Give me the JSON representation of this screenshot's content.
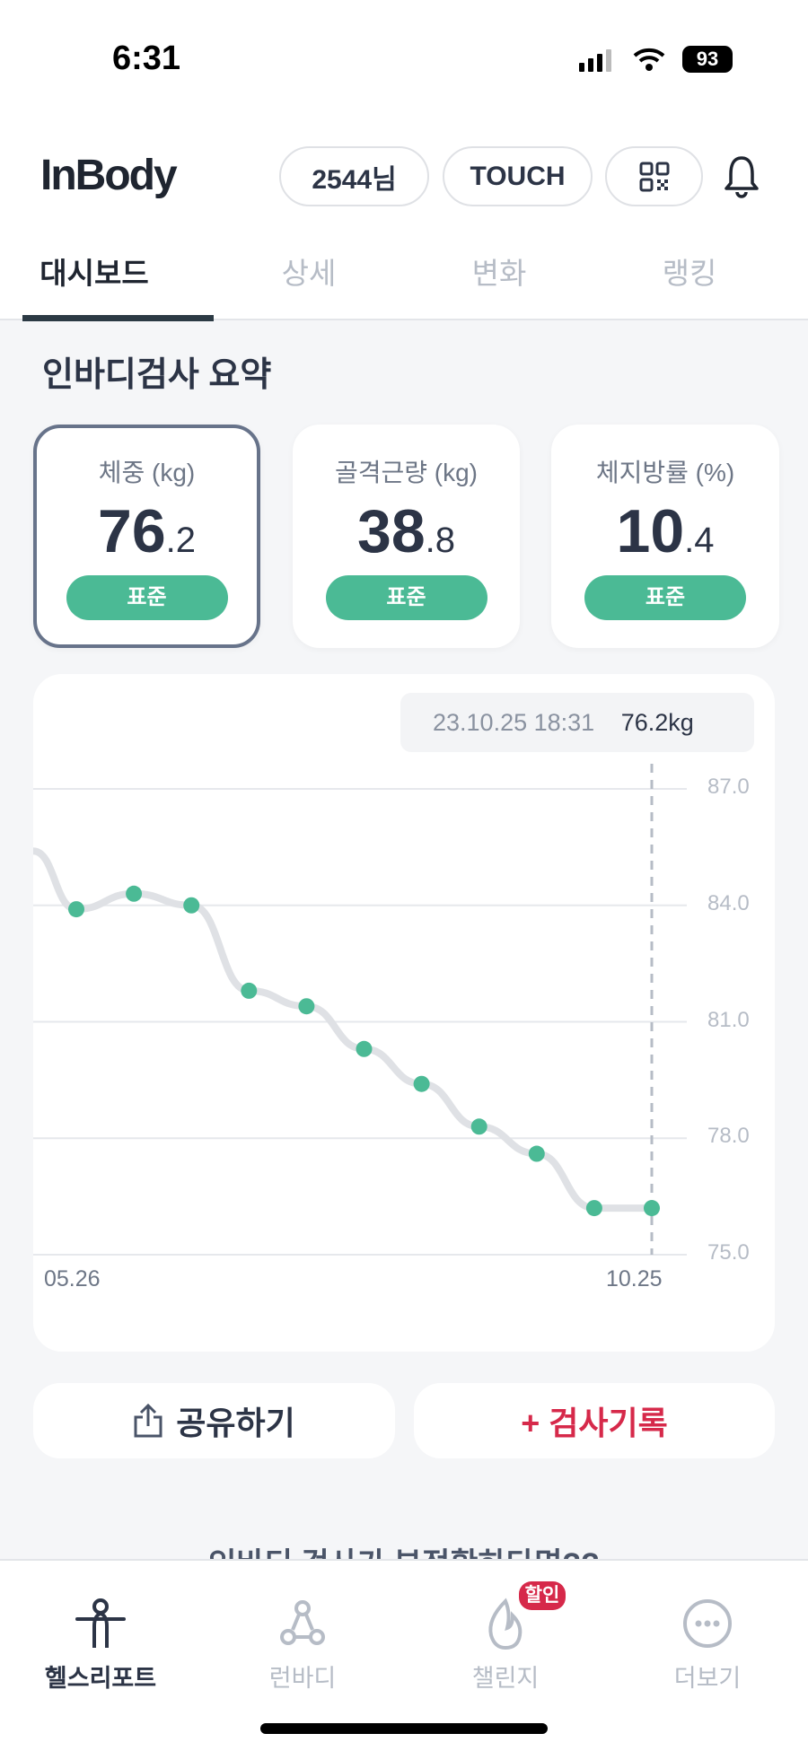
{
  "status": {
    "time": "6:31",
    "battery": "93"
  },
  "header": {
    "logo": "InBody",
    "user_pill": "2544님",
    "touch_pill": "TOUCH",
    "qr_icon": "qr-code-icon",
    "bell_icon": "bell-icon"
  },
  "tabs": [
    {
      "label": "대시보드",
      "active": true
    },
    {
      "label": "상세"
    },
    {
      "label": "변화"
    },
    {
      "label": "랭킹"
    }
  ],
  "section_title": "인바디검사 요약",
  "cards": [
    {
      "label": "체중 (kg)",
      "int": "76",
      "dec": ".2",
      "badge": "표준",
      "selected": true
    },
    {
      "label": "골격근량 (kg)",
      "int": "38",
      "dec": ".8",
      "badge": "표준"
    },
    {
      "label": "체지방률 (%)",
      "int": "10",
      "dec": ".4",
      "badge": "표준"
    }
  ],
  "chart_data": {
    "type": "line",
    "tooltip": {
      "date": "23.10.25 18:31",
      "value": "76.2kg"
    },
    "x_labels": [
      "05.26",
      "10.25"
    ],
    "y_ticks": [
      "87.0",
      "84.0",
      "81.0",
      "78.0",
      "75.0"
    ],
    "ylim": [
      75,
      87
    ],
    "values": [
      83.9,
      84.3,
      84.0,
      81.8,
      81.4,
      80.3,
      79.4,
      78.3,
      77.6,
      76.2,
      76.2
    ],
    "offscreen_start_value": 85.4,
    "grid": true,
    "point_color": "#4bba95",
    "line_color": "#dfe1e5"
  },
  "actions": {
    "share": "공유하기",
    "add_record": "+ 검사기록"
  },
  "peek_text": "인바디 검사가 부정확하다면??",
  "nav": [
    {
      "label": "헬스리포트",
      "active": true
    },
    {
      "label": "런바디"
    },
    {
      "label": "챌린지",
      "badge": "할인"
    },
    {
      "label": "더보기"
    }
  ]
}
